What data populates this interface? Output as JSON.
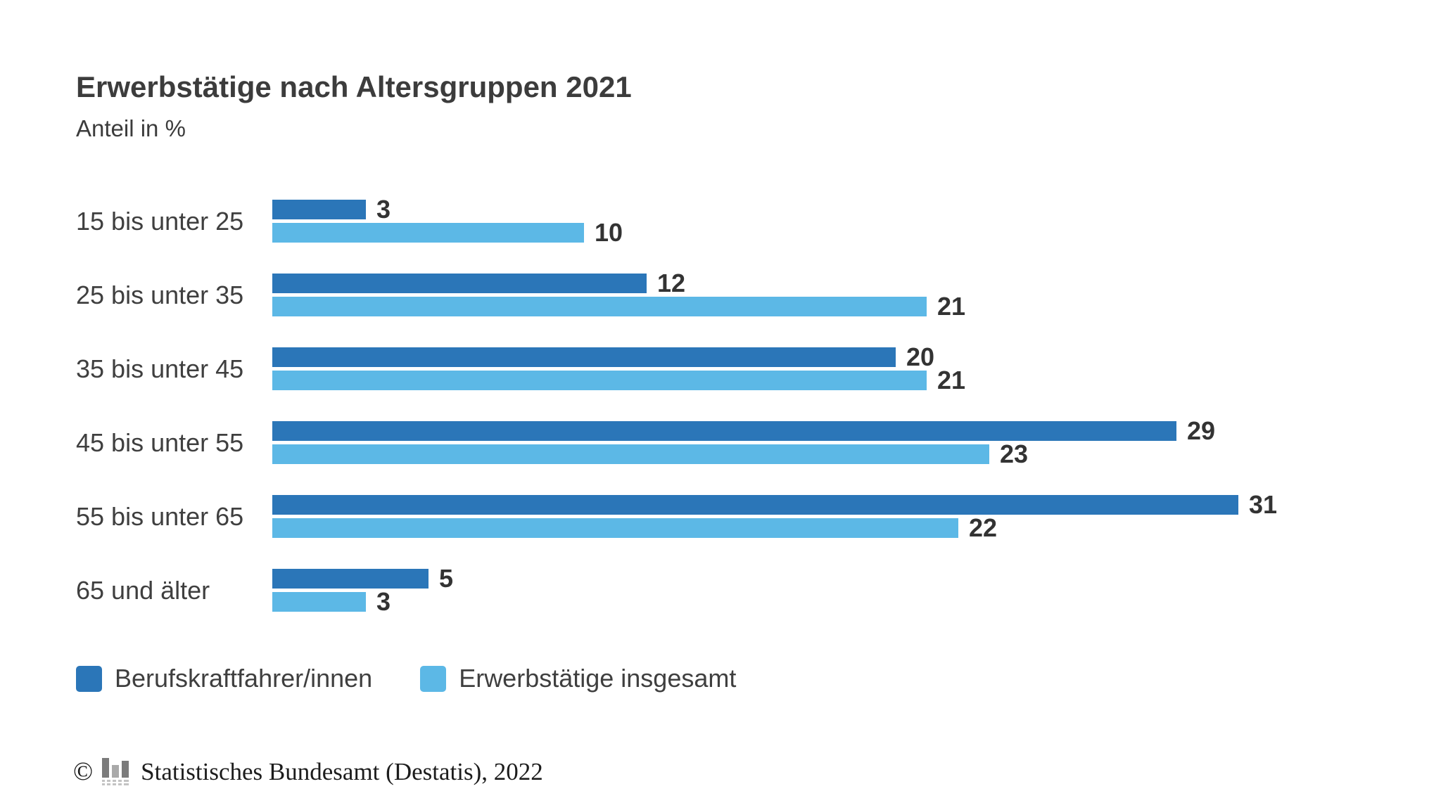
{
  "chart_data": {
    "type": "bar",
    "orientation": "horizontal",
    "title": "Erwerbstätige nach Altersgruppen 2021",
    "subtitle": "Anteil in %",
    "categories": [
      "15 bis unter 25",
      "25 bis unter 35",
      "35 bis unter 45",
      "45 bis unter 55",
      "55 bis unter 65",
      "65 und älter"
    ],
    "series": [
      {
        "name": "Berufskraftfahrer/innen",
        "color": "#2b76b8",
        "values": [
          3,
          12,
          20,
          29,
          31,
          5
        ]
      },
      {
        "name": "Erwerbstätige insgesamt",
        "color": "#5cb8e6",
        "values": [
          10,
          21,
          21,
          23,
          22,
          3
        ]
      }
    ],
    "xlim": [
      0,
      31
    ],
    "value_labels": true,
    "grid": false,
    "axis_lines": false,
    "legend_position": "bottom-left"
  },
  "footer": {
    "copyright_symbol": "©",
    "icon": "destatis-logo-icon",
    "source": "Statistisches Bundesamt (Destatis), 2022"
  },
  "colors": {
    "background": "#ffffff",
    "title_text": "#3c3c3c",
    "category_text": "#3f3f3f",
    "value_text": "#333333",
    "footer_text": "#1c1c1c",
    "icon_grey_dark": "#7b7b7b",
    "icon_grey_light": "#c3c3c3"
  }
}
